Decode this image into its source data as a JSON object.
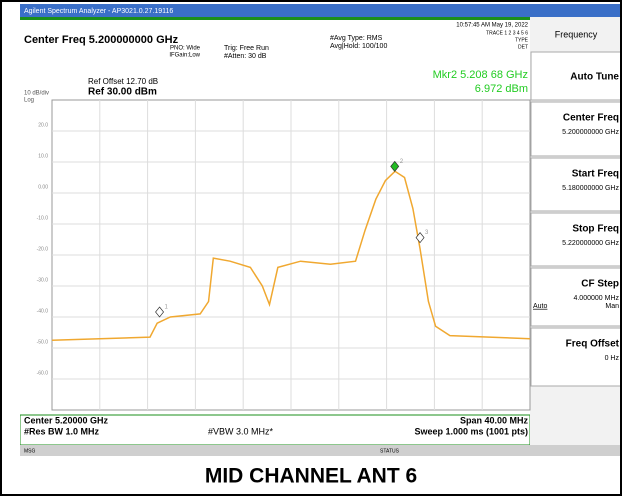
{
  "titlebar": "Agilent Spectrum Analyzer - AP3021.0.27.19116",
  "header": {
    "center_freq": "Center Freq 5.200000000 GHz",
    "pno": "PNO: Wide",
    "ifgain": "IFGain:Low",
    "trig": "Trig: Free Run",
    "atten": "#Atten: 30 dB",
    "avg_type": "#Avg Type: RMS",
    "avg_hold": "Avg|Hold: 100/100",
    "time": "10:57:45 AM May 19, 2022",
    "trace": "TRACE 1 2 3 4 5 6",
    "type": "TYPE",
    "det": "DET"
  },
  "scale": {
    "ref_offset": "Ref Offset 12.70 dB",
    "db_div": "10 dB/div",
    "log": "Log",
    "ref_level": "Ref 30.00 dBm"
  },
  "marker_readout": {
    "freq": "Mkr2 5.208 68 GHz",
    "level": "6.972 dBm"
  },
  "chart_data": {
    "type": "line",
    "xlim": [
      5.18,
      5.22
    ],
    "ylim": [
      -70,
      30
    ],
    "yticks": [
      {
        "value": 20,
        "label": "20.0"
      },
      {
        "value": 10,
        "label": "10.0"
      },
      {
        "value": 0,
        "label": "0.00"
      },
      {
        "value": -10,
        "label": "-10.0"
      },
      {
        "value": -20,
        "label": "-20.0"
      },
      {
        "value": -30,
        "label": "-30.0"
      },
      {
        "value": -40,
        "label": "-40.0"
      },
      {
        "value": -50,
        "label": "-50.0"
      },
      {
        "value": -60,
        "label": "-60.0"
      }
    ],
    "series": [
      {
        "color": "#f0a830",
        "x": [
          5.18,
          5.184,
          5.1882,
          5.1888,
          5.1899,
          5.1924,
          5.1931,
          5.1935,
          5.1949,
          5.1966,
          5.1976,
          5.1982,
          5.1989,
          5.2008,
          5.2033,
          5.2054,
          5.2062,
          5.2071,
          5.2079,
          5.2087,
          5.2095,
          5.2102,
          5.2108,
          5.2115,
          5.2121,
          5.2133,
          5.22
        ],
        "values": [
          -47.5,
          -47,
          -46.5,
          -42,
          -40,
          -39,
          -35,
          -21,
          -22,
          -24,
          -30,
          -36,
          -24,
          -22,
          -23,
          -22,
          -12,
          -2,
          4,
          7,
          5,
          -5,
          -18,
          -35,
          -43,
          -46,
          -47
        ]
      }
    ],
    "markers": [
      {
        "label": "1",
        "x": 5.189,
        "value": -40,
        "color": "#ffffff"
      },
      {
        "label": "2",
        "x": 5.20868,
        "value": 6.972,
        "color": "#22bb22"
      },
      {
        "label": "3",
        "x": 5.2108,
        "value": -16,
        "color": "#ffffff"
      }
    ]
  },
  "footer": {
    "center": "Center 5.20000 GHz",
    "res_bw": "#Res BW 1.0 MHz",
    "vbw": "#VBW 3.0 MHz*",
    "span": "Span 40.00 MHz",
    "sweep": "Sweep  1.000 ms (1001 pts)",
    "msg": "MSG",
    "status": "STATUS"
  },
  "softkeys": {
    "title": "Frequency",
    "keys": [
      {
        "label": "Auto Tune"
      },
      {
        "label": "Center Freq",
        "value": "5.200000000 GHz"
      },
      {
        "label": "Start Freq",
        "value": "5.180000000 GHz"
      },
      {
        "label": "Stop Freq",
        "value": "5.220000000 GHz"
      },
      {
        "label": "CF Step",
        "value": "4.000000 MHz",
        "auto": "Auto",
        "man": "Man"
      },
      {
        "label": "Freq Offset",
        "value": "0 Hz"
      }
    ]
  },
  "caption": "MID CHANNEL ANT 6"
}
